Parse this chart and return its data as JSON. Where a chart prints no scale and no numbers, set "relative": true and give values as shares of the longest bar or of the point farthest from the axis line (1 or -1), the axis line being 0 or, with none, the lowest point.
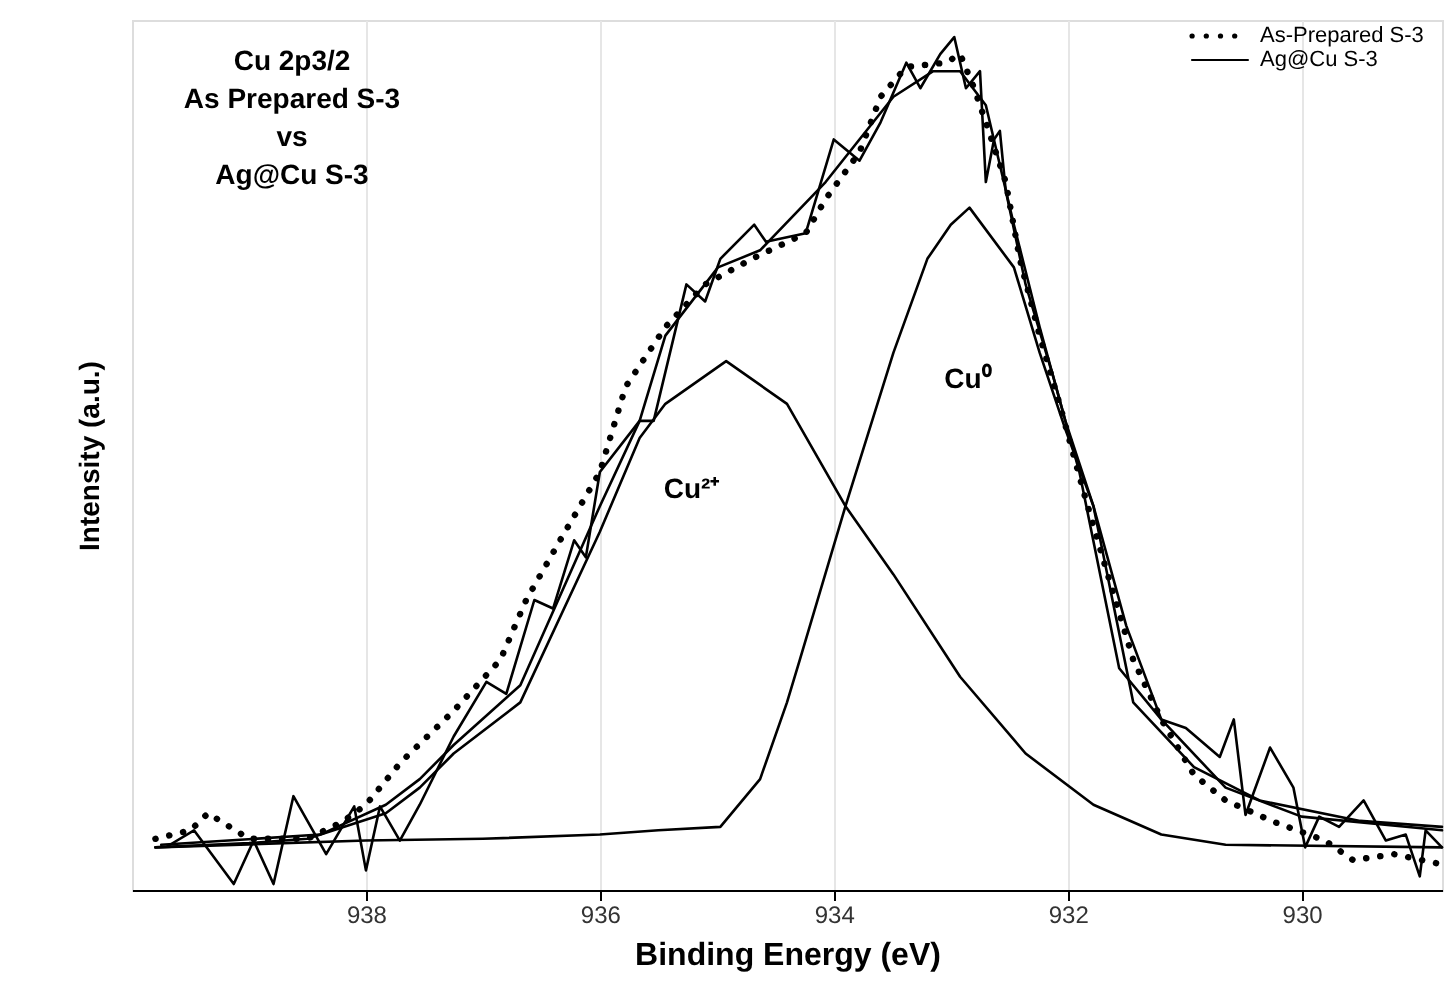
{
  "chart_data": {
    "type": "line",
    "title": "Cu 2p3/2\nAs Prepared S-3\nvs\nAg@Cu S-3",
    "xlabel": "Binding Energy (eV)",
    "ylabel": "Intensity (a.u.)",
    "relative": true,
    "xlim": [
      940,
      928.8
    ],
    "xticks": [
      938,
      936,
      934,
      932,
      930
    ],
    "grid": "x",
    "legend": "top right",
    "annotations": [
      "Cu²⁺",
      "Cu⁰"
    ],
    "series": [
      {
        "name": "As-Prepared S-3",
        "color": "#000000",
        "line_style": "dotted",
        "x": [
          939.8,
          939.5,
          939.35,
          939.0,
          938.5,
          938.2,
          938.0,
          937.7,
          937.25,
          936.85,
          936.63,
          936.34,
          936.0,
          935.78,
          935.44,
          935.1,
          934.7,
          934.24,
          934.07,
          933.78,
          933.6,
          933.38,
          933.04,
          932.92,
          932.8,
          932.7,
          932.53,
          932.41,
          932.24,
          932.07,
          931.85,
          931.68,
          931.44,
          931.2,
          930.92,
          930.65,
          930.24,
          929.8,
          929.56,
          929.21,
          928.8
        ],
        "values": [
          0.06,
          0.07,
          0.09,
          0.06,
          0.06,
          0.08,
          0.1,
          0.15,
          0.21,
          0.27,
          0.34,
          0.41,
          0.49,
          0.59,
          0.66,
          0.71,
          0.74,
          0.77,
          0.81,
          0.865,
          0.93,
          0.965,
          0.97,
          0.98,
          0.94,
          0.9,
          0.83,
          0.74,
          0.65,
          0.57,
          0.46,
          0.38,
          0.27,
          0.2,
          0.135,
          0.105,
          0.08,
          0.058,
          0.035,
          0.042,
          0.03
        ]
      },
      {
        "name": "Ag@Cu S-3",
        "color": "#000000",
        "line_style": "solid",
        "x": [
          939.7,
          939.47,
          939.13,
          938.96,
          938.79,
          938.62,
          938.34,
          938.1,
          938.0,
          937.88,
          937.71,
          937.54,
          937.25,
          936.97,
          936.8,
          936.56,
          936.4,
          936.22,
          936.12,
          936.0,
          935.66,
          935.54,
          935.26,
          935.1,
          934.97,
          934.68,
          934.58,
          934.24,
          934.0,
          933.78,
          933.6,
          933.38,
          933.26,
          933.09,
          932.97,
          932.87,
          932.75,
          932.7,
          932.63,
          932.58,
          932.53,
          932.36,
          932.12,
          931.9,
          931.56,
          931.2,
          930.99,
          930.7,
          930.58,
          930.48,
          930.27,
          930.07,
          929.97,
          929.85,
          929.68,
          929.47,
          929.28,
          929.11,
          928.99,
          928.94,
          928.8
        ],
        "values": [
          0.051,
          0.07,
          0.007,
          0.058,
          0.007,
          0.11,
          0.042,
          0.098,
          0.023,
          0.098,
          0.058,
          0.1,
          0.18,
          0.244,
          0.23,
          0.34,
          0.33,
          0.41,
          0.39,
          0.49,
          0.55,
          0.55,
          0.71,
          0.69,
          0.74,
          0.78,
          0.76,
          0.77,
          0.88,
          0.855,
          0.9,
          0.97,
          0.94,
          0.98,
          1.0,
          0.94,
          0.96,
          0.83,
          0.88,
          0.89,
          0.82,
          0.71,
          0.6,
          0.49,
          0.26,
          0.2,
          0.19,
          0.156,
          0.2,
          0.088,
          0.167,
          0.12,
          0.05,
          0.086,
          0.074,
          0.105,
          0.058,
          0.065,
          0.016,
          0.07,
          0.05
        ]
      },
      {
        "color": "#000000",
        "line_style": "solid",
        "x": [
          939.75,
          938.39,
          937.83,
          937.54,
          937.25,
          936.68,
          936.0,
          935.66,
          935.44,
          934.99,
          934.63,
          934.07,
          933.49,
          933.15,
          932.92,
          932.7,
          932.46,
          932.24,
          932.02,
          931.78,
          931.44,
          930.92,
          930.36,
          929.5,
          928.8
        ],
        "values": [
          0.053,
          0.065,
          0.1,
          0.13,
          0.17,
          0.24,
          0.45,
          0.55,
          0.65,
          0.73,
          0.75,
          0.83,
          0.93,
          0.96,
          0.96,
          0.92,
          0.78,
          0.66,
          0.55,
          0.45,
          0.22,
          0.144,
          0.105,
          0.081,
          0.074
        ]
      },
      {
        "color": "#000000",
        "line_style": "solid",
        "x": [
          939.8,
          939.0,
          938.5,
          937.83,
          937.54,
          937.25,
          936.68,
          936.0,
          935.66,
          935.44,
          934.92,
          934.4,
          933.9,
          933.49,
          932.92,
          932.36,
          931.78,
          931.2,
          930.65,
          928.8
        ],
        "values": [
          0.05,
          0.055,
          0.06,
          0.09,
          0.12,
          0.16,
          0.22,
          0.42,
          0.53,
          0.57,
          0.62,
          0.57,
          0.45,
          0.37,
          0.25,
          0.16,
          0.1,
          0.065,
          0.053,
          0.05
        ]
      },
      {
        "color": "#000000",
        "line_style": "solid",
        "x": [
          939.8,
          938.0,
          937.0,
          936.0,
          935.5,
          934.97,
          934.63,
          934.4,
          934.29,
          933.9,
          933.49,
          933.2,
          933.0,
          932.84,
          932.46,
          932.24,
          932.02,
          931.78,
          931.5,
          931.2,
          930.65,
          930.0,
          928.8
        ],
        "values": [
          0.05,
          0.058,
          0.06,
          0.065,
          0.07,
          0.074,
          0.13,
          0.22,
          0.27,
          0.45,
          0.63,
          0.74,
          0.78,
          0.8,
          0.73,
          0.63,
          0.54,
          0.45,
          0.31,
          0.2,
          0.12,
          0.086,
          0.07
        ]
      }
    ]
  }
}
